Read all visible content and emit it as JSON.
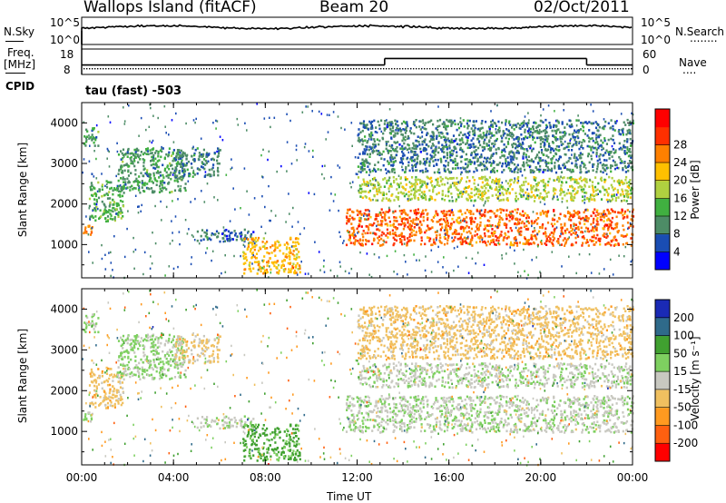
{
  "header": {
    "title": "Wallops Island (fitACF)",
    "beam": "Beam 20",
    "date": "02/Oct/2011"
  },
  "noise_panel": {
    "left_label": "N.Sky",
    "left_ticks": [
      "10^5",
      "10^0"
    ],
    "right_ticks": [
      "10^5",
      "10^0"
    ],
    "right_label": "N.Search",
    "right_dots": "........"
  },
  "freq_panel": {
    "left_label_1": "Freq.",
    "left_label_2": "[MHz]",
    "left_ticks": [
      "18",
      "8"
    ],
    "right_ticks": [
      "60",
      "0"
    ],
    "right_label": "Nave",
    "right_dots": "....",
    "cpid_label": "CPID",
    "cpid_text": "tau (fast) -503",
    "freq_levels": [
      {
        "from_hour": 0,
        "to_hour": 13.2,
        "freq": 11.5
      },
      {
        "from_hour": 13.2,
        "to_hour": 22.0,
        "freq": 14.5
      },
      {
        "from_hour": 22.0,
        "to_hour": 24,
        "freq": 11.5
      }
    ]
  },
  "x_axis": {
    "label": "Time UT",
    "ticks": [
      "00:00",
      "04:00",
      "08:00",
      "12:00",
      "16:00",
      "20:00",
      "00:00"
    ],
    "range_hours": [
      0,
      24
    ]
  },
  "power_panel": {
    "ylabel": "Slant Range [km]",
    "yticks": [
      "1000",
      "2000",
      "3000",
      "4000"
    ],
    "colorbar_label": "Power [dB]",
    "colorbar_ticks": [
      "4",
      "8",
      "12",
      "16",
      "20",
      "24",
      "28"
    ],
    "colors": [
      "#0000ff",
      "#1a4db3",
      "#4d8c66",
      "#40b040",
      "#b0d040",
      "#ffc000",
      "#ff8000",
      "#ff3000",
      "#ff0000"
    ]
  },
  "velocity_panel": {
    "ylabel": "Slant Range [km]",
    "yticks": [
      "1000",
      "2000",
      "3000",
      "4000"
    ],
    "colorbar_label": "Velocity [m s⁻¹]",
    "colorbar_ticks": [
      "200",
      "100",
      "50",
      "15",
      "-15",
      "-50",
      "-100",
      "-200"
    ],
    "colors": [
      "#1a2ab5",
      "#2f6a8a",
      "#40a030",
      "#7ed060",
      "#c8c8c0",
      "#f0c060",
      "#ff9a20",
      "#ff6010",
      "#ff0000"
    ]
  },
  "chart_data": {
    "type": "heatmap",
    "title": "Wallops Island (fitACF)",
    "xlabel": "Time UT",
    "ylabel": "Slant Range [km]",
    "xlim_hours": [
      0,
      24
    ],
    "ylim_km": [
      180,
      4500
    ],
    "power_colorbar_db": [
      4,
      8,
      12,
      16,
      20,
      24,
      28
    ],
    "velocity_colorbar_ms": [
      -200,
      -100,
      -50,
      -15,
      15,
      50,
      100,
      200
    ],
    "echo_regions": [
      {
        "t": [
          0.0,
          0.6
        ],
        "r": [
          1250,
          1500
        ],
        "power": 22,
        "velocity": 20
      },
      {
        "t": [
          0.0,
          0.7
        ],
        "r": [
          3450,
          3900
        ],
        "power": 10,
        "velocity": 20
      },
      {
        "t": [
          0.3,
          1.8
        ],
        "r": [
          1600,
          2600
        ],
        "power": 12,
        "velocity": -30
      },
      {
        "t": [
          1.5,
          4.5
        ],
        "r": [
          2300,
          3400
        ],
        "power": 10,
        "velocity": 20
      },
      {
        "t": [
          4.0,
          6.0
        ],
        "r": [
          2700,
          3400
        ],
        "power": 8,
        "velocity": -20
      },
      {
        "t": [
          5.0,
          7.5
        ],
        "r": [
          1100,
          1400
        ],
        "power": 7,
        "velocity": 10
      },
      {
        "t": [
          7.0,
          9.5
        ],
        "r": [
          300,
          1200
        ],
        "power": 20,
        "velocity": 60
      },
      {
        "t": [
          11.5,
          24.0
        ],
        "r": [
          1000,
          1900
        ],
        "power": 24,
        "velocity": 10
      },
      {
        "t": [
          12.0,
          24.0
        ],
        "r": [
          2100,
          2700
        ],
        "power": 16,
        "velocity": 10
      },
      {
        "t": [
          12.0,
          24.0
        ],
        "r": [
          2800,
          4100
        ],
        "power": 8,
        "velocity": -30
      }
    ]
  }
}
